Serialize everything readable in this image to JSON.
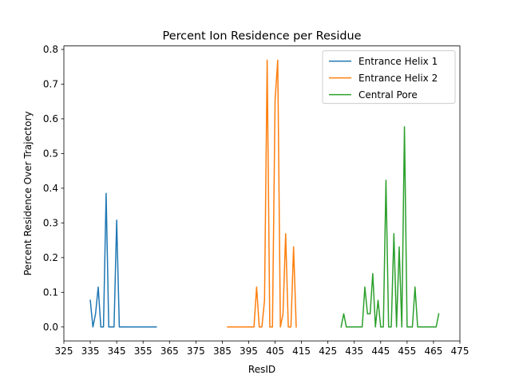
{
  "chart_data": {
    "type": "line",
    "title": "Percent Ion Residence per Residue",
    "xlabel": "ResID",
    "ylabel": "Percent Residence Over Trajectory",
    "xlim": [
      325,
      475
    ],
    "ylim": [
      -0.04,
      0.81
    ],
    "xticks": [
      325,
      335,
      345,
      355,
      365,
      375,
      385,
      395,
      405,
      415,
      425,
      435,
      445,
      455,
      465,
      475
    ],
    "yticks": [
      0.0,
      0.1,
      0.2,
      0.3,
      0.4,
      0.5,
      0.6,
      0.7,
      0.8
    ],
    "yticklabels": [
      "0.0",
      "0.1",
      "0.2",
      "0.3",
      "0.4",
      "0.5",
      "0.6",
      "0.7",
      "0.8"
    ],
    "grid": false,
    "legend_position": "top-right",
    "series": [
      {
        "name": "Entrance Helix 1",
        "color": "#1f77b4",
        "x": [
          335,
          336,
          337,
          338,
          339,
          340,
          341,
          342,
          343,
          344,
          345,
          346,
          347,
          348,
          349,
          350,
          351,
          352,
          353,
          354,
          355,
          356,
          357,
          358,
          359,
          360
        ],
        "y": [
          0.077,
          0.0,
          0.038,
          0.115,
          0.0,
          0.0,
          0.385,
          0.0,
          0.0,
          0.0,
          0.308,
          0.0,
          0.0,
          0.0,
          0.0,
          0.0,
          0.0,
          0.0,
          0.0,
          0.0,
          0.0,
          0.0,
          0.0,
          0.0,
          0.0,
          0.0
        ]
      },
      {
        "name": "Entrance Helix 2",
        "color": "#ff7f0e",
        "x": [
          387,
          388,
          389,
          390,
          391,
          392,
          393,
          394,
          395,
          396,
          397,
          398,
          399,
          400,
          401,
          402,
          403,
          404,
          405,
          406,
          407,
          408,
          409,
          410,
          411,
          412,
          413
        ],
        "y": [
          0.0,
          0.0,
          0.0,
          0.0,
          0.0,
          0.0,
          0.0,
          0.0,
          0.0,
          0.0,
          0.0,
          0.115,
          0.0,
          0.0,
          0.077,
          0.769,
          0.0,
          0.0,
          0.654,
          0.769,
          0.0,
          0.038,
          0.269,
          0.0,
          0.0,
          0.231,
          0.0
        ]
      },
      {
        "name": "Central Pore",
        "color": "#2ca02c",
        "x": [
          430,
          431,
          432,
          433,
          434,
          435,
          436,
          437,
          438,
          439,
          440,
          441,
          442,
          443,
          444,
          445,
          446,
          447,
          448,
          449,
          450,
          451,
          452,
          453,
          454,
          455,
          456,
          457,
          458,
          459,
          460,
          461,
          462,
          463,
          464,
          465,
          466,
          467
        ],
        "y": [
          0.0,
          0.038,
          0.0,
          0.0,
          0.0,
          0.0,
          0.0,
          0.0,
          0.0,
          0.115,
          0.038,
          0.038,
          0.154,
          0.0,
          0.077,
          0.0,
          0.0,
          0.423,
          0.0,
          0.0,
          0.269,
          0.0,
          0.231,
          0.0,
          0.577,
          0.0,
          0.0,
          0.0,
          0.115,
          0.0,
          0.0,
          0.0,
          0.0,
          0.0,
          0.0,
          0.0,
          0.0,
          0.038
        ]
      }
    ]
  }
}
